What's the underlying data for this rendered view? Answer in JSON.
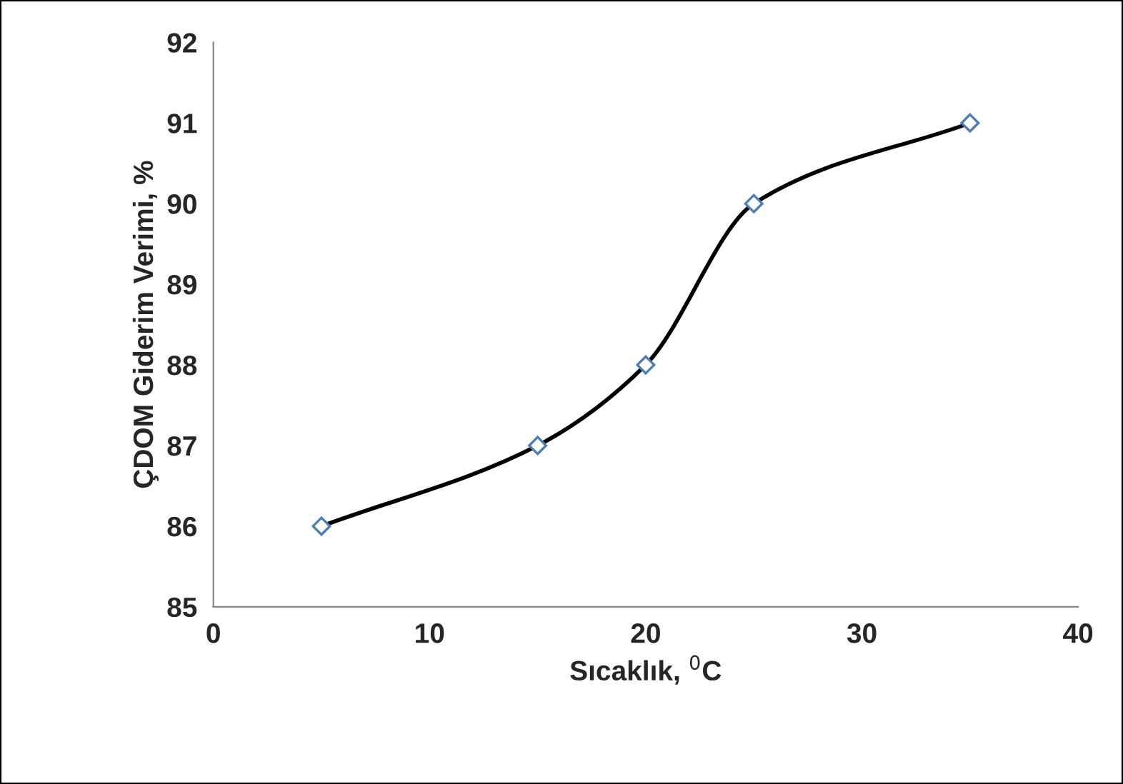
{
  "chart_data": {
    "type": "line",
    "xlabel": "Sıcaklık, $^{0}$C",
    "ylabel": "ÇDOM Giderim Verimi, %",
    "x": [
      5,
      15,
      20,
      25,
      35
    ],
    "series": [
      {
        "color": "#000000",
        "values": [
          86,
          87,
          88,
          90,
          91
        ]
      }
    ],
    "marker": "diamond",
    "line_style": "solid",
    "grid": false,
    "legend": false,
    "xlim": [
      0,
      40
    ],
    "xticks": [
      0,
      10,
      20,
      30,
      40
    ],
    "ylim": [
      85,
      92
    ],
    "yticks": [
      85,
      86,
      87,
      88,
      89,
      90,
      91,
      92
    ]
  }
}
